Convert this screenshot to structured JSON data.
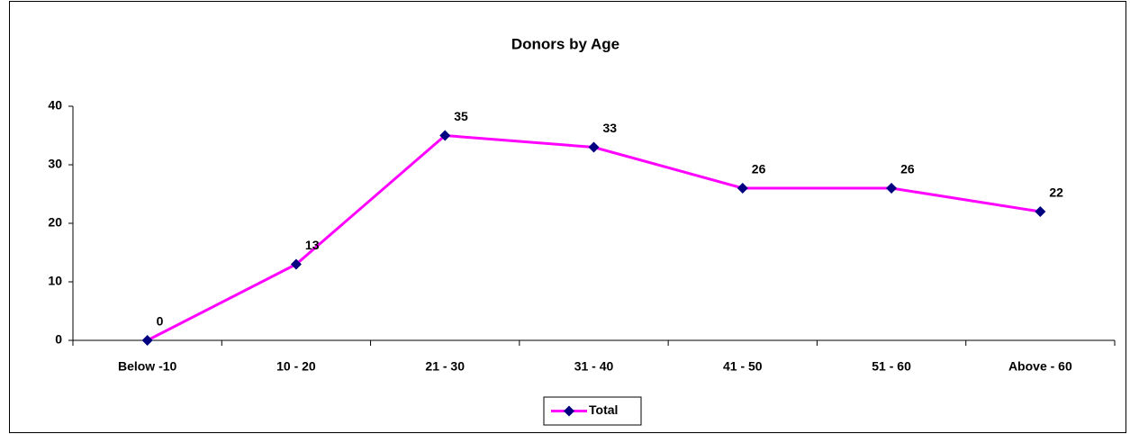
{
  "chart_data": {
    "type": "line",
    "title": "Donors by Age",
    "categories": [
      "Below -10",
      "10 - 20",
      "21 - 30",
      "31 - 40",
      "41 - 50",
      "51 - 60",
      "Above - 60"
    ],
    "series": [
      {
        "name": "Total",
        "color": "#ff00ff",
        "marker_color": "#000080",
        "values": [
          0,
          13,
          35,
          33,
          26,
          26,
          22
        ]
      }
    ],
    "ylim": [
      0,
      40
    ],
    "yticks": [
      0,
      10,
      20,
      30,
      40
    ],
    "grid": false,
    "legend": "bottom"
  }
}
